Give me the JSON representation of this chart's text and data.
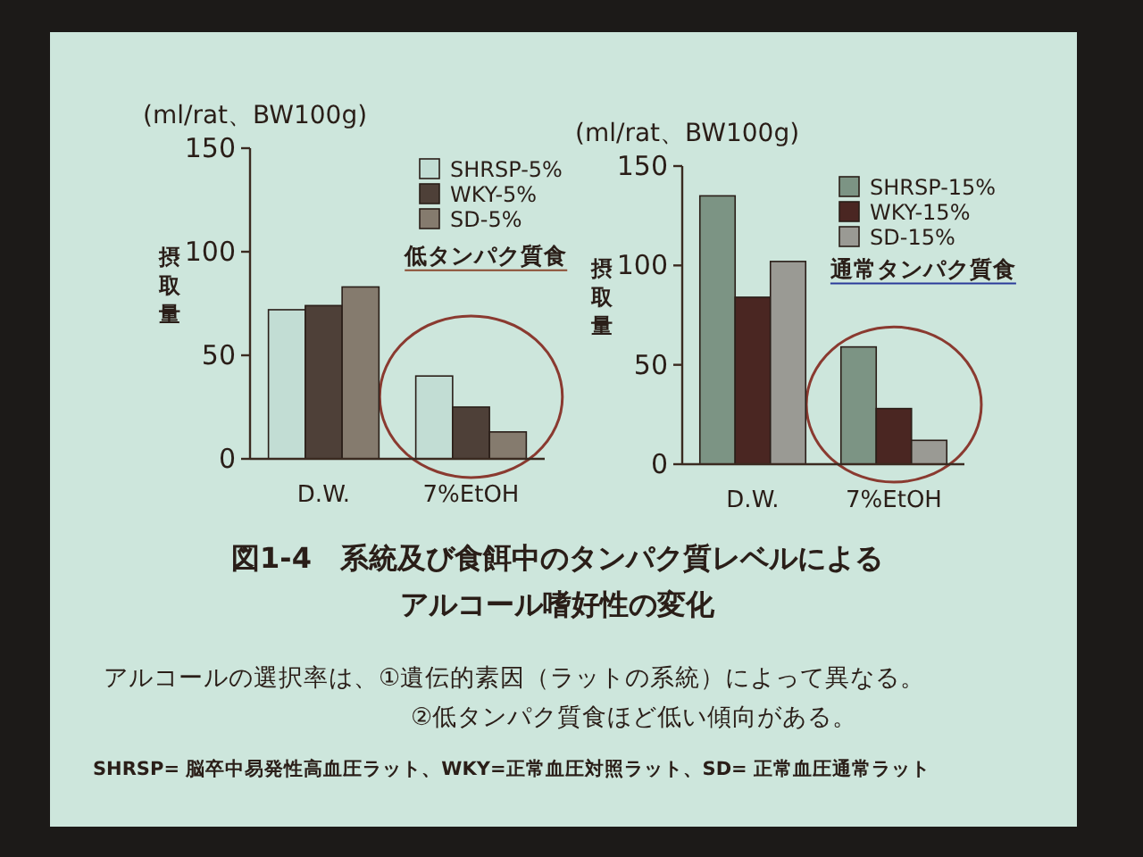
{
  "chart_data": [
    {
      "type": "bar",
      "ylabel": "摂取量",
      "annotations": [
        "(ml/rat、BW100g)",
        "低タンパク質食"
      ],
      "categories": [
        "D.W.",
        "7%EtOH"
      ],
      "series": [
        {
          "name": "SHRSP-5%",
          "color": "#c2ddd4",
          "values": [
            72,
            40
          ]
        },
        {
          "name": "WKY-5%",
          "color": "#4e4038",
          "values": [
            74,
            25
          ]
        },
        {
          "name": "SD-5%",
          "color": "#857b6e",
          "values": [
            83,
            13
          ]
        }
      ],
      "ylim": [
        0,
        150
      ],
      "yticks": [
        0,
        50,
        100,
        150
      ],
      "legend": "top right"
    },
    {
      "type": "bar",
      "ylabel": "摂取量",
      "annotations": [
        "(ml/rat、BW100g)",
        "通常タンパク質食"
      ],
      "categories": [
        "D.W.",
        "7%EtOH"
      ],
      "series": [
        {
          "name": "SHRSP-15%",
          "color": "#7c9484",
          "values": [
            135,
            59
          ]
        },
        {
          "name": "WKY-15%",
          "color": "#4a2622",
          "values": [
            84,
            28
          ]
        },
        {
          "name": "SD-15%",
          "color": "#9a9a94",
          "values": [
            102,
            12
          ]
        }
      ],
      "ylim": [
        0,
        150
      ],
      "yticks": [
        0,
        50,
        100,
        150
      ],
      "legend": "top right"
    },
    {
      "type": "other",
      "title": "図1-4　系統及び食餌中のタンパク質レベルによるアルコール嗜好性の変化",
      "annotations": [
        "アルコールの選択率は、①遺伝的素因（ラットの系統）によって異なる。",
        "②低タンパク質食ほど低い傾向がある。",
        "SHRSP= 脳卒中易発性高血圧ラット、WKY=正常血圧対照ラット、SD= 正常血圧通常ラット"
      ]
    }
  ]
}
